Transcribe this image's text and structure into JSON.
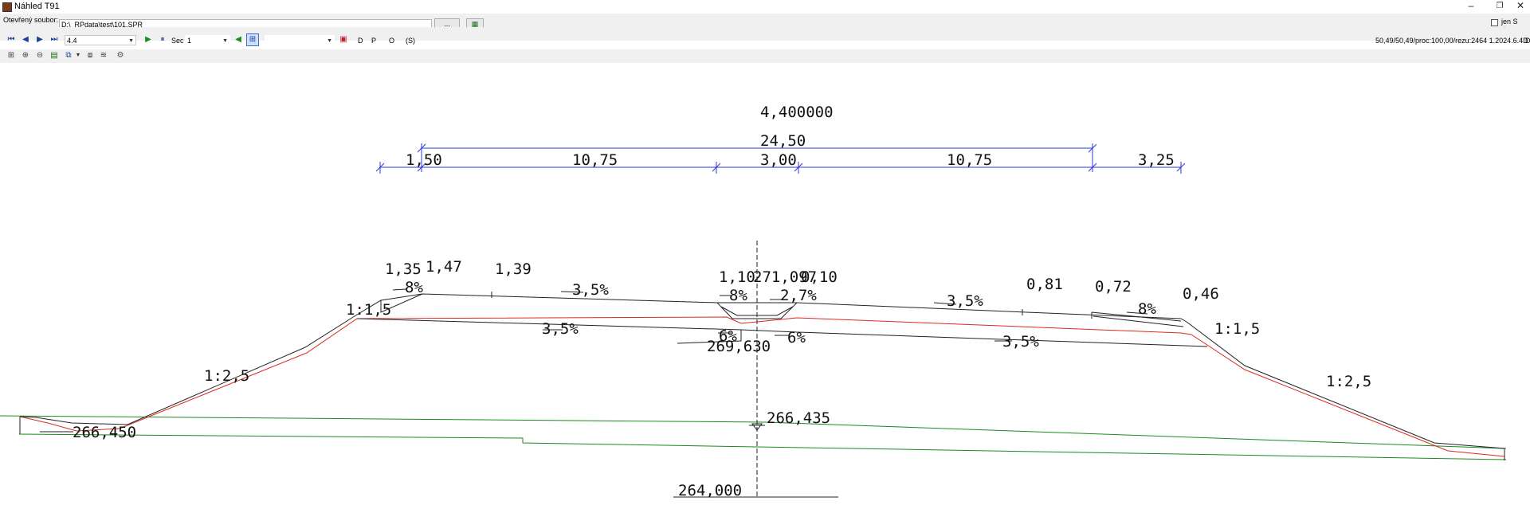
{
  "window": {
    "title": "Náhled T91"
  },
  "file_row": {
    "label": "Otevřený soubor:",
    "path": "D:\\_RPdata\\test\\101.SPR",
    "browse_label": "...",
    "only_s_label": "jen S data"
  },
  "toolbar": {
    "profile_value": "4.4",
    "sec_label": "Sec",
    "sec_value": "1",
    "empty_combo_value": "",
    "d_label": "D",
    "p_label": "P",
    "o_label": "O",
    "s_label": "(S)",
    "status": "50,49/50,49/proc:100,00/rezu:2464   1.2024.6.4D",
    "status_tail": "D"
  },
  "icons": [
    "first-icon",
    "prev-icon",
    "next-icon",
    "last-icon",
    "play-icon",
    "pause-icon",
    "back-icon",
    "grid-icon",
    "save-icon",
    "zoom-extent-icon",
    "zoom-in-icon",
    "zoom-out-icon",
    "page-icon",
    "layers-icon",
    "export-icon",
    "stack-icon",
    "settings-icon"
  ],
  "colors": {
    "dimension": "#2b3bd4",
    "terrain": "#1a8a1a",
    "design": "#e0281e",
    "lines": "#222222"
  },
  "drawing": {
    "station": "4,400000",
    "total_width": "24,50",
    "segments": [
      "1,50",
      "10,75",
      "3,00",
      "10,75",
      "3,25"
    ],
    "top_labels": [
      "1,35",
      "1,47",
      "1,39",
      "1,10",
      "271,097",
      "0,10",
      "0,81",
      "0,72",
      "0,46"
    ],
    "slopes_left": [
      "1:1,5",
      "1:2,5"
    ],
    "slopes_right": [
      "1:1,5",
      "1:2,5"
    ],
    "grades": [
      "8%",
      "3,5%",
      "8%",
      "2,7%",
      "3,5%",
      "8%",
      "3,5%",
      "6%",
      "6%",
      "3,5%"
    ],
    "elev_bottom_axis": "269,630",
    "elev_water": "266,435",
    "elev_left": "266,450",
    "elev_datum": "264,000"
  }
}
